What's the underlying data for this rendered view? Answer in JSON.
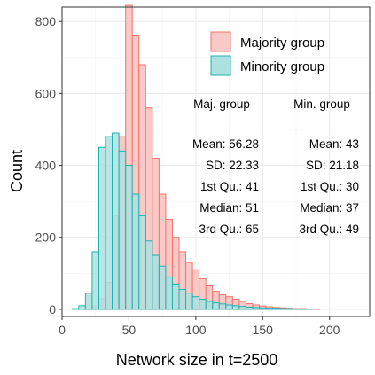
{
  "chart_data": {
    "type": "histogram",
    "xlabel": "Network size in t=2500",
    "ylabel": "Count",
    "xlim": [
      0,
      230
    ],
    "ylim": [
      -20,
      840
    ],
    "x_ticks": [
      0,
      50,
      100,
      150,
      200
    ],
    "y_ticks": [
      0,
      200,
      400,
      600,
      800
    ],
    "grid": true,
    "bin_width": 5,
    "bin_start": 7.5,
    "legend_position": "top-right",
    "series": [
      {
        "name": "Majority group",
        "fill": "#f8c9c6",
        "stroke": "#f0766e",
        "values": [
          0,
          0,
          2,
          8,
          30,
          75,
          260,
          480,
          845,
          760,
          680,
          560,
          420,
          320,
          250,
          200,
          160,
          130,
          110,
          85,
          65,
          50,
          40,
          35,
          28,
          22,
          16,
          12,
          9,
          7,
          5,
          4,
          3,
          2,
          2,
          1,
          1,
          0,
          0,
          0,
          0,
          0,
          0
        ]
      },
      {
        "name": "Minority group",
        "fill": "#aee0e0",
        "stroke": "#1fb2ae",
        "values": [
          2,
          10,
          45,
          160,
          450,
          480,
          490,
          440,
          400,
          320,
          260,
          190,
          150,
          120,
          90,
          70,
          55,
          45,
          35,
          28,
          22,
          18,
          15,
          12,
          10,
          8,
          6,
          5,
          4,
          3,
          3,
          2,
          2,
          1,
          1,
          1,
          0,
          0,
          0,
          0,
          0,
          0,
          0
        ]
      }
    ],
    "stats": {
      "majority": {
        "title": "Maj. group",
        "lines": [
          "Mean: 56.28",
          "SD: 22.33",
          "1st Qu.: 41",
          "Median: 51",
          "3rd Qu.: 65"
        ]
      },
      "minority": {
        "title": "Min. group",
        "lines": [
          "Mean: 43",
          "SD: 21.18",
          "1st Qu.: 30",
          "Median: 37",
          "3rd Qu.: 49"
        ]
      }
    }
  }
}
